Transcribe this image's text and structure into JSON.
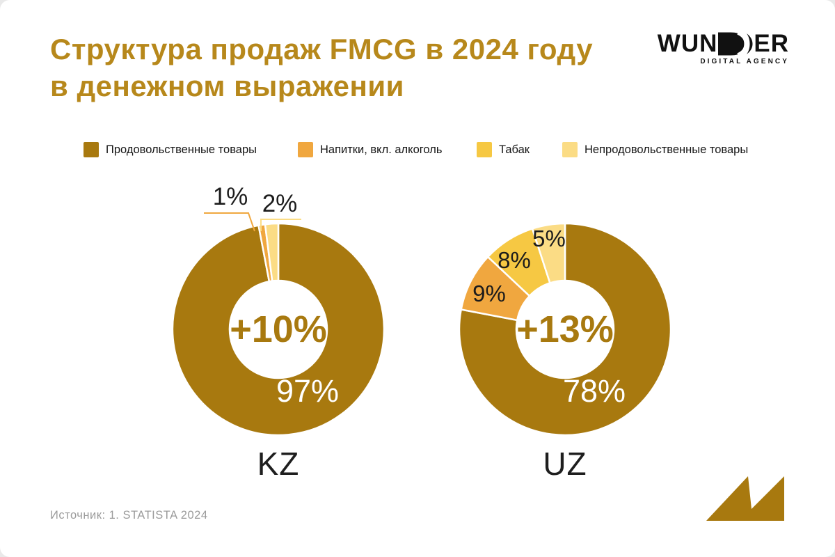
{
  "title": {
    "line1": "Структура продаж FMCG в 2024 году",
    "line2": "в денежном выражении",
    "color": "#B7881B"
  },
  "logo": {
    "wordmark_left": "WUN",
    "wordmark_right": "ER",
    "tagline": "DIGITAL AGENCY"
  },
  "colors": {
    "food": "#A8790F",
    "drinks": "#F0A73F",
    "tobacco": "#F6C843",
    "nonfood": "#FBDC85",
    "title_gold": "#B7881B",
    "text_dark": "#1C1C1C",
    "source_gray": "#9B9B9B"
  },
  "legend": {
    "items": [
      {
        "label": "Продовольственные товары",
        "color": "#A8790F"
      },
      {
        "label": "Напитки, вкл. алкоголь",
        "color": "#F0A73F"
      },
      {
        "label": "Табак",
        "color": "#F6C843"
      },
      {
        "label": "Непродовольственные товары",
        "color": "#FBDC85"
      }
    ]
  },
  "chart_data": [
    {
      "type": "pie",
      "variant": "donut",
      "country": "KZ",
      "center_growth_label": "+10%",
      "main_share_label": "97%",
      "start_angle_deg": -90,
      "direction": "clockwise",
      "segments": [
        {
          "category": "Продовольственные товары",
          "value": 97,
          "color": "#A8790F",
          "label": "97%"
        },
        {
          "category": "Напитки, вкл. алкоголь",
          "value": 1,
          "color": "#F0A73F",
          "label": "1%"
        },
        {
          "category": "Непродовольственные товары",
          "value": 2,
          "color": "#FBDC85",
          "label": "2%"
        }
      ]
    },
    {
      "type": "pie",
      "variant": "donut",
      "country": "UZ",
      "center_growth_label": "+13%",
      "main_share_label": "78%",
      "start_angle_deg": -90,
      "direction": "clockwise",
      "segments": [
        {
          "category": "Продовольственные товары",
          "value": 78,
          "color": "#A8790F",
          "label": "78%"
        },
        {
          "category": "Напитки, вкл. алкоголь",
          "value": 9,
          "color": "#F0A73F",
          "label": "9%"
        },
        {
          "category": "Табак",
          "value": 8,
          "color": "#F6C843",
          "label": "8%"
        },
        {
          "category": "Непродовольственные товары",
          "value": 5,
          "color": "#FBDC85",
          "label": "5%"
        }
      ]
    }
  ],
  "source": {
    "text": "Источник: 1. STATISTA 2024"
  }
}
